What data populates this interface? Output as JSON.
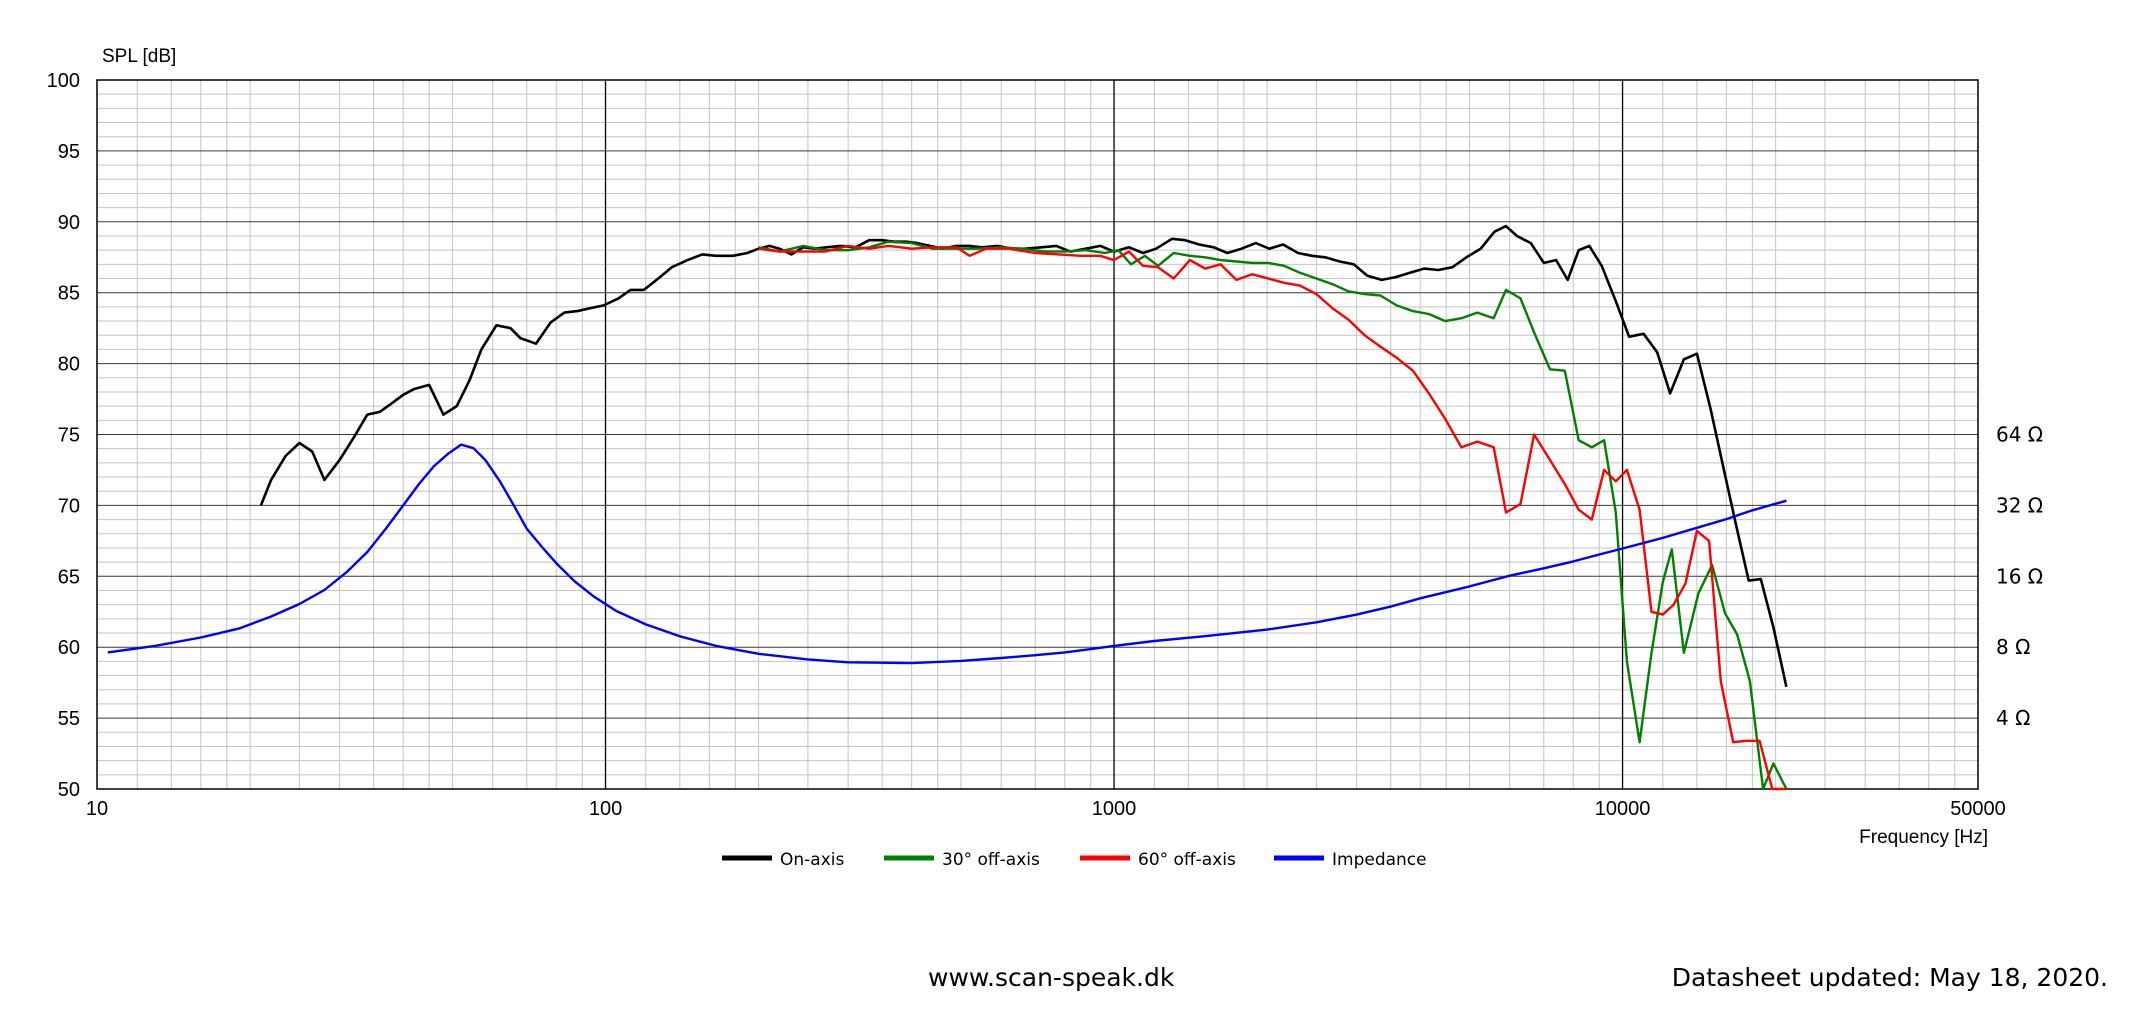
{
  "chart_data": {
    "type": "line",
    "y_axis_label": "SPL [dB]",
    "x_axis_label": "Frequency [Hz]",
    "x_scale": "log",
    "xlim": [
      10,
      50000
    ],
    "ylim": [
      50,
      100
    ],
    "y_ticks": [
      "100",
      "95",
      "90",
      "85",
      "80",
      "75",
      "70",
      "65",
      "60",
      "55",
      "50"
    ],
    "x_ticks": [
      "10",
      "100",
      "1000",
      "10000",
      "50000"
    ],
    "impedance_ticks": [
      "64 Ω",
      "32 Ω",
      "16 Ω",
      "8 Ω",
      "4 Ω"
    ],
    "impedance_scale": {
      "ohm_at_50dB": 2,
      "ohm_at_100dB": 2048
    },
    "grid": true,
    "legend_position": "bottom-center",
    "series": [
      {
        "name": "On-axis",
        "color": "#000000",
        "axis": "spl",
        "points": [
          [
            21,
            70
          ],
          [
            22,
            71.8
          ],
          [
            23.5,
            73.5
          ],
          [
            25,
            74.4
          ],
          [
            26.5,
            73.8
          ],
          [
            28,
            71.8
          ],
          [
            30,
            73.2
          ],
          [
            32,
            74.8
          ],
          [
            34,
            76.4
          ],
          [
            36,
            76.6
          ],
          [
            38,
            77.2
          ],
          [
            40,
            77.8
          ],
          [
            42,
            78.2
          ],
          [
            45,
            78.5
          ],
          [
            48,
            76.4
          ],
          [
            51,
            77
          ],
          [
            54,
            78.8
          ],
          [
            57,
            81
          ],
          [
            61,
            82.7
          ],
          [
            65,
            82.5
          ],
          [
            68,
            81.8
          ],
          [
            73,
            81.4
          ],
          [
            78,
            82.9
          ],
          [
            83,
            83.6
          ],
          [
            88,
            83.7
          ],
          [
            93,
            83.9
          ],
          [
            99,
            84.1
          ],
          [
            106,
            84.6
          ],
          [
            112,
            85.2
          ],
          [
            119,
            85.2
          ],
          [
            127,
            86
          ],
          [
            135,
            86.8
          ],
          [
            145,
            87.3
          ],
          [
            155,
            87.7
          ],
          [
            165,
            87.6
          ],
          [
            178,
            87.6
          ],
          [
            190,
            87.8
          ],
          [
            200,
            88.1
          ],
          [
            210,
            88.3
          ],
          [
            220,
            88.1
          ],
          [
            232,
            87.7
          ],
          [
            245,
            88.2
          ],
          [
            258,
            88.1
          ],
          [
            272,
            88.2
          ],
          [
            290,
            88.3
          ],
          [
            310,
            88.2
          ],
          [
            330,
            88.7
          ],
          [
            350,
            88.7
          ],
          [
            370,
            88.6
          ],
          [
            390,
            88.6
          ],
          [
            410,
            88.5
          ],
          [
            435,
            88.3
          ],
          [
            460,
            88.1
          ],
          [
            490,
            88.3
          ],
          [
            520,
            88.3
          ],
          [
            550,
            88.2
          ],
          [
            590,
            88.3
          ],
          [
            630,
            88.1
          ],
          [
            670,
            88.1
          ],
          [
            720,
            88.2
          ],
          [
            770,
            88.3
          ],
          [
            820,
            87.9
          ],
          [
            880,
            88.1
          ],
          [
            940,
            88.3
          ],
          [
            1000,
            87.9
          ],
          [
            1070,
            88.2
          ],
          [
            1140,
            87.8
          ],
          [
            1210,
            88.1
          ],
          [
            1300,
            88.8
          ],
          [
            1380,
            88.7
          ],
          [
            1470,
            88.4
          ],
          [
            1570,
            88.2
          ],
          [
            1670,
            87.8
          ],
          [
            1780,
            88.1
          ],
          [
            1900,
            88.5
          ],
          [
            2020,
            88.1
          ],
          [
            2150,
            88.4
          ],
          [
            2300,
            87.8
          ],
          [
            2450,
            87.6
          ],
          [
            2600,
            87.5
          ],
          [
            2780,
            87.2
          ],
          [
            2960,
            87
          ],
          [
            3150,
            86.2
          ],
          [
            3360,
            85.9
          ],
          [
            3580,
            86.1
          ],
          [
            3820,
            86.4
          ],
          [
            4070,
            86.7
          ],
          [
            4340,
            86.6
          ],
          [
            4630,
            86.8
          ],
          [
            4930,
            87.5
          ],
          [
            5260,
            88.1
          ],
          [
            5600,
            89.3
          ],
          [
            5900,
            89.7
          ],
          [
            6200,
            89
          ],
          [
            6600,
            88.5
          ],
          [
            7000,
            87.1
          ],
          [
            7400,
            87.3
          ],
          [
            7800,
            85.9
          ],
          [
            8200,
            88
          ],
          [
            8600,
            88.3
          ],
          [
            9100,
            86.9
          ],
          [
            9700,
            84.4
          ],
          [
            10300,
            81.9
          ],
          [
            11000,
            82.1
          ],
          [
            11700,
            80.8
          ],
          [
            12400,
            77.9
          ],
          [
            13200,
            80.3
          ],
          [
            14000,
            80.7
          ],
          [
            14900,
            76.8
          ],
          [
            15800,
            72.6
          ],
          [
            16700,
            68.7
          ],
          [
            17700,
            64.7
          ],
          [
            18700,
            64.8
          ],
          [
            19800,
            61.4
          ],
          [
            21000,
            57.2
          ]
        ]
      },
      {
        "name": "30° off-axis",
        "color": "#008000",
        "axis": "spl",
        "points": [
          [
            200,
            88.2
          ],
          [
            220,
            87.9
          ],
          [
            245,
            88.3
          ],
          [
            270,
            88
          ],
          [
            300,
            88
          ],
          [
            330,
            88.2
          ],
          [
            360,
            88.6
          ],
          [
            400,
            88.5
          ],
          [
            440,
            88.1
          ],
          [
            490,
            88.1
          ],
          [
            540,
            88.1
          ],
          [
            600,
            88.2
          ],
          [
            660,
            88.1
          ],
          [
            730,
            87.9
          ],
          [
            800,
            87.9
          ],
          [
            880,
            88
          ],
          [
            960,
            87.8
          ],
          [
            1020,
            88
          ],
          [
            1080,
            87
          ],
          [
            1150,
            87.6
          ],
          [
            1220,
            86.9
          ],
          [
            1310,
            87.8
          ],
          [
            1410,
            87.6
          ],
          [
            1510,
            87.5
          ],
          [
            1620,
            87.3
          ],
          [
            1740,
            87.2
          ],
          [
            1870,
            87.1
          ],
          [
            2010,
            87.1
          ],
          [
            2160,
            86.9
          ],
          [
            2320,
            86.4
          ],
          [
            2500,
            86
          ],
          [
            2690,
            85.6
          ],
          [
            2890,
            85.1
          ],
          [
            3110,
            84.9
          ],
          [
            3340,
            84.8
          ],
          [
            3600,
            84.1
          ],
          [
            3870,
            83.7
          ],
          [
            4160,
            83.5
          ],
          [
            4480,
            83
          ],
          [
            4820,
            83.2
          ],
          [
            5180,
            83.6
          ],
          [
            5580,
            83.2
          ],
          [
            5900,
            85.2
          ],
          [
            6300,
            84.6
          ],
          [
            6700,
            82.2
          ],
          [
            7200,
            79.6
          ],
          [
            7700,
            79.5
          ],
          [
            8200,
            74.6
          ],
          [
            8700,
            74.1
          ],
          [
            9200,
            74.6
          ],
          [
            9700,
            69.5
          ],
          [
            10200,
            59
          ],
          [
            10800,
            53.3
          ],
          [
            11400,
            59.6
          ],
          [
            12000,
            64.6
          ],
          [
            12500,
            66.9
          ],
          [
            13200,
            59.6
          ],
          [
            14100,
            63.8
          ],
          [
            15000,
            65.8
          ],
          [
            15900,
            62.4
          ],
          [
            16800,
            60.9
          ],
          [
            17800,
            57.6
          ],
          [
            18900,
            50
          ],
          [
            19800,
            51.8
          ],
          [
            21000,
            50
          ]
        ]
      },
      {
        "name": "60° off-axis",
        "color": "#ff0000",
        "axis": "spl",
        "points": [
          [
            200,
            88.1
          ],
          [
            220,
            87.9
          ],
          [
            245,
            87.9
          ],
          [
            270,
            87.9
          ],
          [
            300,
            88.3
          ],
          [
            330,
            88.1
          ],
          [
            360,
            88.3
          ],
          [
            400,
            88.1
          ],
          [
            440,
            88.2
          ],
          [
            490,
            88.2
          ],
          [
            520,
            87.6
          ],
          [
            560,
            88.1
          ],
          [
            620,
            88.1
          ],
          [
            700,
            87.8
          ],
          [
            780,
            87.7
          ],
          [
            860,
            87.6
          ],
          [
            940,
            87.6
          ],
          [
            1000,
            87.3
          ],
          [
            1070,
            87.9
          ],
          [
            1140,
            86.9
          ],
          [
            1220,
            86.8
          ],
          [
            1310,
            86
          ],
          [
            1410,
            87.3
          ],
          [
            1510,
            86.7
          ],
          [
            1620,
            87
          ],
          [
            1740,
            85.9
          ],
          [
            1870,
            86.3
          ],
          [
            2010,
            86
          ],
          [
            2160,
            85.7
          ],
          [
            2320,
            85.5
          ],
          [
            2500,
            84.9
          ],
          [
            2690,
            83.9
          ],
          [
            2890,
            83.1
          ],
          [
            3110,
            82
          ],
          [
            3340,
            81.2
          ],
          [
            3600,
            80.4
          ],
          [
            3870,
            79.5
          ],
          [
            4160,
            77.9
          ],
          [
            4480,
            76.1
          ],
          [
            4820,
            74.1
          ],
          [
            5180,
            74.5
          ],
          [
            5580,
            74.1
          ],
          [
            5900,
            69.5
          ],
          [
            6300,
            70.1
          ],
          [
            6700,
            75
          ],
          [
            7200,
            73.2
          ],
          [
            7700,
            71.5
          ],
          [
            8200,
            69.7
          ],
          [
            8700,
            69
          ],
          [
            9200,
            72.5
          ],
          [
            9700,
            71.7
          ],
          [
            10200,
            72.5
          ],
          [
            10800,
            69.7
          ],
          [
            11400,
            62.5
          ],
          [
            12000,
            62.3
          ],
          [
            12600,
            63
          ],
          [
            13300,
            64.5
          ],
          [
            14000,
            68.2
          ],
          [
            14800,
            67.5
          ],
          [
            15600,
            57.6
          ],
          [
            16500,
            53.3
          ],
          [
            17500,
            53.4
          ],
          [
            18600,
            53.4
          ],
          [
            19700,
            50
          ],
          [
            21000,
            50
          ]
        ]
      },
      {
        "name": "Impedance",
        "color": "#0000ff",
        "axis": "impedance",
        "points": [
          [
            10.5,
            7.6
          ],
          [
            13,
            8.1
          ],
          [
            16,
            8.8
          ],
          [
            19,
            9.6
          ],
          [
            22,
            10.8
          ],
          [
            25,
            12.2
          ],
          [
            28,
            14
          ],
          [
            31,
            16.7
          ],
          [
            34,
            20.3
          ],
          [
            37,
            25.5
          ],
          [
            40,
            32
          ],
          [
            43,
            39.5
          ],
          [
            46,
            47
          ],
          [
            49,
            53
          ],
          [
            52,
            58
          ],
          [
            55,
            56
          ],
          [
            58,
            50
          ],
          [
            62,
            40.5
          ],
          [
            66,
            32
          ],
          [
            70,
            25.5
          ],
          [
            75,
            21.3
          ],
          [
            80,
            18.2
          ],
          [
            87,
            15.2
          ],
          [
            95,
            13.1
          ],
          [
            105,
            11.4
          ],
          [
            120,
            10
          ],
          [
            140,
            8.9
          ],
          [
            165,
            8.1
          ],
          [
            200,
            7.5
          ],
          [
            250,
            7.1
          ],
          [
            300,
            6.9
          ],
          [
            400,
            6.85
          ],
          [
            500,
            7
          ],
          [
            600,
            7.2
          ],
          [
            700,
            7.4
          ],
          [
            800,
            7.6
          ],
          [
            900,
            7.85
          ],
          [
            1000,
            8.1
          ],
          [
            1200,
            8.5
          ],
          [
            1500,
            8.9
          ],
          [
            2000,
            9.5
          ],
          [
            2500,
            10.2
          ],
          [
            3000,
            11
          ],
          [
            3500,
            11.9
          ],
          [
            4000,
            12.9
          ],
          [
            5000,
            14.5
          ],
          [
            6000,
            16.1
          ],
          [
            7000,
            17.3
          ],
          [
            8000,
            18.5
          ],
          [
            9000,
            19.8
          ],
          [
            10000,
            21
          ],
          [
            12000,
            23.3
          ],
          [
            14000,
            25.7
          ],
          [
            16000,
            28
          ],
          [
            18000,
            30.5
          ],
          [
            21000,
            33.5
          ]
        ]
      }
    ]
  },
  "legend": [
    {
      "label": "On-axis",
      "color": "#000000"
    },
    {
      "label": "30° off-axis",
      "color": "#008000"
    },
    {
      "label": "60° off-axis",
      "color": "#ff0000"
    },
    {
      "label": "Impedance",
      "color": "#0000ff"
    }
  ],
  "footer": {
    "website": "www.scan-speak.dk",
    "updated": "Datasheet updated: May 18, 2020."
  }
}
